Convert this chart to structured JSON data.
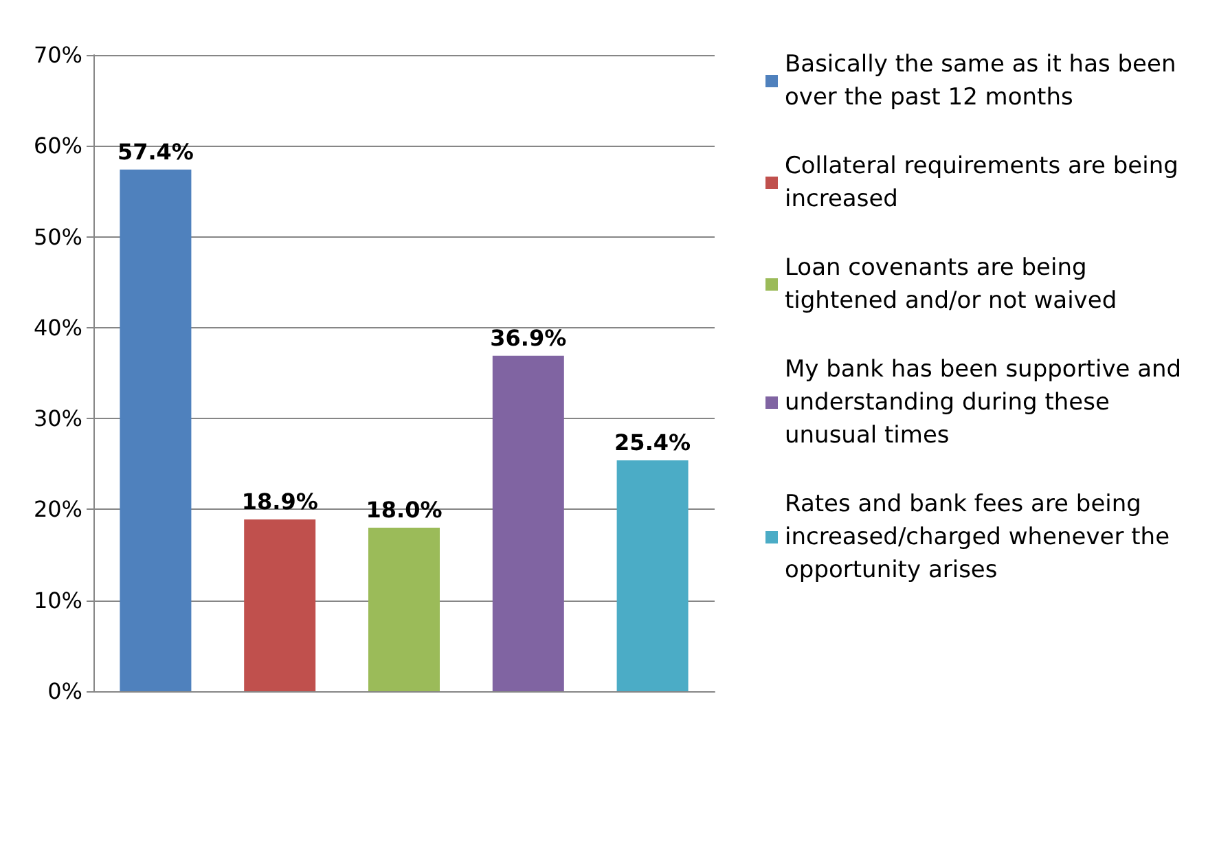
{
  "chart_data": {
    "type": "bar",
    "categories": [
      null,
      null,
      null,
      null,
      null
    ],
    "series": [
      {
        "name": "Basically the same as it has been over the past 12 months",
        "color": "#4f81bd",
        "values": [
          57.4,
          null,
          null,
          null,
          null
        ],
        "value_labels": [
          "57.4%",
          null,
          null,
          null,
          null
        ]
      },
      {
        "name": "Collateral requirements are being increased",
        "color": "#c0504d",
        "values": [
          null,
          18.9,
          null,
          null,
          null
        ],
        "value_labels": [
          null,
          "18.9%",
          null,
          null,
          null
        ]
      },
      {
        "name": "Loan covenants are being tightened and/or not waived",
        "color": "#9bbb59",
        "values": [
          null,
          null,
          18.0,
          null,
          null
        ],
        "value_labels": [
          null,
          null,
          "18.0%",
          null,
          null
        ]
      },
      {
        "name": "My bank has been supportive and understanding during these unusual times",
        "color": "#8064a2",
        "values": [
          null,
          null,
          null,
          36.9,
          null
        ],
        "value_labels": [
          null,
          null,
          null,
          "36.9%",
          null
        ]
      },
      {
        "name": "Rates and bank fees are being increased/charged whenever the opportunity arises",
        "color": "#4bacc6",
        "values": [
          null,
          null,
          null,
          null,
          25.4
        ],
        "value_labels": [
          null,
          null,
          null,
          null,
          "25.4%"
        ]
      }
    ],
    "ylim": [
      0,
      70
    ],
    "yticks": [
      {
        "value": 0,
        "label": "0%"
      },
      {
        "value": 10,
        "label": "10%"
      },
      {
        "value": 20,
        "label": "20%"
      },
      {
        "value": 30,
        "label": "30%"
      },
      {
        "value": 40,
        "label": "40%"
      },
      {
        "value": 50,
        "label": "50%"
      },
      {
        "value": 60,
        "label": "60%"
      },
      {
        "value": 70,
        "label": "70%"
      }
    ],
    "grid": "y",
    "legend": "right"
  }
}
